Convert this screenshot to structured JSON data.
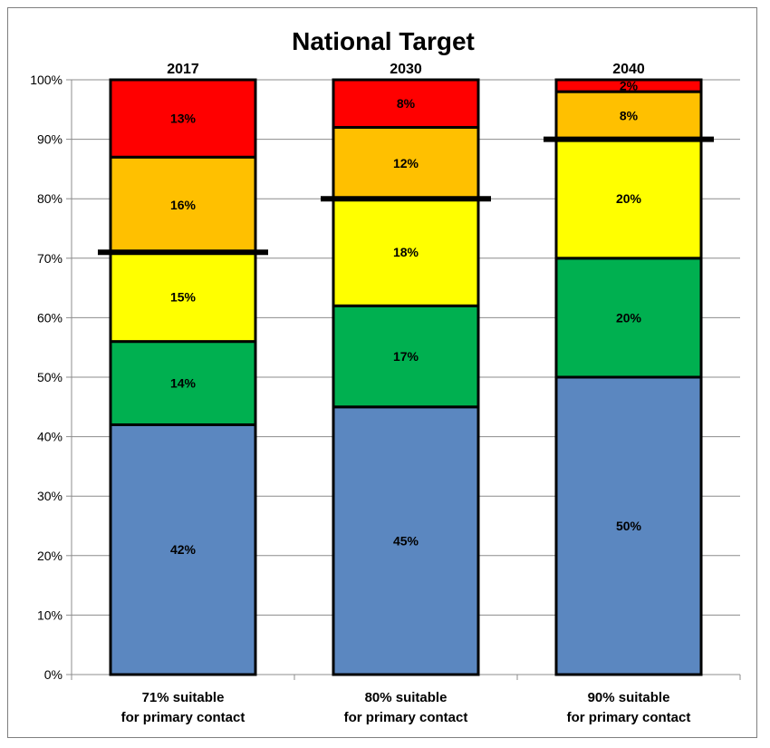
{
  "chart_data": {
    "type": "bar",
    "stacked": true,
    "title": "National Target",
    "categories": [
      "2017",
      "2030",
      "2040"
    ],
    "category_labels": [
      [
        "71% suitable",
        "for primary contact"
      ],
      [
        "80% suitable",
        "for primary contact"
      ],
      [
        "90% suitable",
        "for primary contact"
      ]
    ],
    "series": [
      {
        "color": "#5b87c0",
        "values": [
          42,
          45,
          50
        ],
        "labels": [
          "42%",
          "45%",
          "50%"
        ]
      },
      {
        "color": "#00b050",
        "values": [
          14,
          17,
          20
        ],
        "labels": [
          "14%",
          "17%",
          "20%"
        ]
      },
      {
        "color": "#ffff00",
        "values": [
          15,
          18,
          20
        ],
        "labels": [
          "15%",
          "18%",
          "20%"
        ]
      },
      {
        "color": "#ffc000",
        "values": [
          16,
          12,
          8
        ],
        "labels": [
          "16%",
          "12%",
          "8%"
        ]
      },
      {
        "color": "#ff0000",
        "values": [
          13,
          8,
          2
        ],
        "labels": [
          "13%",
          "8%",
          "2%"
        ]
      }
    ],
    "target_lines": [
      71,
      80,
      90
    ],
    "ylim": [
      0,
      100
    ],
    "yticks": [
      "0%",
      "10%",
      "20%",
      "30%",
      "40%",
      "50%",
      "60%",
      "70%",
      "80%",
      "90%",
      "100%"
    ],
    "grid": true,
    "legend": "none"
  }
}
